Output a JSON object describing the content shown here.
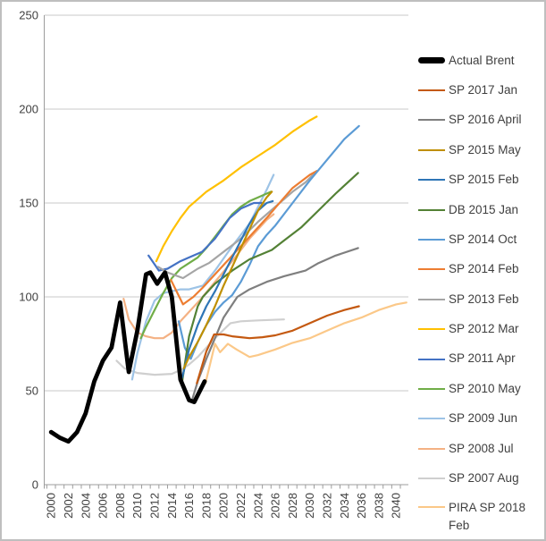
{
  "chart_data": {
    "type": "line",
    "title": "",
    "xlabel": "",
    "ylabel": "",
    "grid": true,
    "legend_position": "right",
    "x_axis": {
      "labels": [
        "2000",
        "2002",
        "2004",
        "2006",
        "2008",
        "2010",
        "2012",
        "2014",
        "2016",
        "2018",
        "2020",
        "2022",
        "2024",
        "2026",
        "2028",
        "2030",
        "2032",
        "2034",
        "2036",
        "2038",
        "2040"
      ],
      "min": 2000,
      "max": 2041.5,
      "label_step": 2,
      "minor_tick_step": 1
    },
    "y_axis": {
      "ticks": [
        0,
        50,
        100,
        150,
        200,
        250
      ],
      "min": 0,
      "max": 250
    },
    "series": [
      {
        "id": "sp-2007-aug",
        "name": "SP 2007 Aug",
        "color": "#CFCFCF",
        "width": 2.2,
        "points": [
          [
            2007.6,
            66
          ],
          [
            2008.5,
            62
          ],
          [
            2010,
            59.5
          ],
          [
            2012,
            58.5
          ],
          [
            2014,
            59
          ],
          [
            2015,
            61
          ],
          [
            2016,
            64
          ],
          [
            2017,
            68
          ],
          [
            2018,
            73
          ],
          [
            2019,
            78
          ],
          [
            2020.8,
            86
          ],
          [
            2022,
            87
          ],
          [
            2024,
            87.5
          ],
          [
            2027,
            88
          ]
        ]
      },
      {
        "id": "sp-2008-jul",
        "name": "SP 2008 Jul",
        "color": "#F4B183",
        "width": 2.2,
        "points": [
          [
            2008.4,
            99
          ],
          [
            2009,
            88
          ],
          [
            2010,
            81
          ],
          [
            2011,
            79
          ],
          [
            2012,
            78
          ],
          [
            2013,
            78
          ],
          [
            2014,
            81
          ],
          [
            2015,
            87
          ],
          [
            2016,
            92
          ],
          [
            2017.4,
            99
          ],
          [
            2019,
            108
          ],
          [
            2021,
            119
          ],
          [
            2023,
            131
          ],
          [
            2025,
            141
          ],
          [
            2025.8,
            144
          ]
        ]
      },
      {
        "id": "sp-2009-jun",
        "name": "SP 2009 Jun",
        "color": "#9DC3E6",
        "width": 2.2,
        "points": [
          [
            2009.4,
            56
          ],
          [
            2010,
            70
          ],
          [
            2011,
            87
          ],
          [
            2012,
            98
          ],
          [
            2013,
            102
          ],
          [
            2014,
            103
          ],
          [
            2015,
            104
          ],
          [
            2016,
            104
          ],
          [
            2017.6,
            106
          ],
          [
            2019,
            114
          ],
          [
            2021,
            127
          ],
          [
            2023,
            139
          ],
          [
            2024,
            148
          ],
          [
            2025,
            157
          ],
          [
            2025.8,
            165
          ]
        ]
      },
      {
        "id": "sp-2010-may",
        "name": "SP 2010 May",
        "color": "#70AD47",
        "width": 2.2,
        "points": [
          [
            2010.4,
            78
          ],
          [
            2011,
            84
          ],
          [
            2012,
            93
          ],
          [
            2013,
            102
          ],
          [
            2014,
            110
          ],
          [
            2015,
            115
          ],
          [
            2016,
            118
          ],
          [
            2017,
            121
          ],
          [
            2018,
            126
          ],
          [
            2019,
            132
          ],
          [
            2020,
            138
          ],
          [
            2021,
            144
          ],
          [
            2022,
            148
          ],
          [
            2023,
            151
          ],
          [
            2024,
            153
          ],
          [
            2025.5,
            156
          ]
        ]
      },
      {
        "id": "sp-2011-apr",
        "name": "SP 2011 Apr",
        "color": "#4472C4",
        "width": 2.2,
        "points": [
          [
            2011.3,
            122
          ],
          [
            2012.5,
            114
          ],
          [
            2013.5,
            115
          ],
          [
            2015,
            119
          ],
          [
            2016,
            121
          ],
          [
            2017.5,
            124
          ],
          [
            2019,
            131
          ],
          [
            2020.7,
            142
          ],
          [
            2022,
            147
          ],
          [
            2023.5,
            150
          ],
          [
            2024.6,
            150
          ]
        ]
      },
      {
        "id": "sp-2012-mar",
        "name": "SP 2012 Mar",
        "color": "#FFC000",
        "width": 2.2,
        "points": [
          [
            2012.2,
            119
          ],
          [
            2013,
            127
          ],
          [
            2014,
            135
          ],
          [
            2015,
            142
          ],
          [
            2016,
            148
          ],
          [
            2017,
            152
          ],
          [
            2018,
            156
          ],
          [
            2020,
            162
          ],
          [
            2022,
            169
          ],
          [
            2024,
            175
          ],
          [
            2026,
            181
          ],
          [
            2028,
            188
          ],
          [
            2030,
            194
          ],
          [
            2030.8,
            196
          ]
        ]
      },
      {
        "id": "sp-2013-feb",
        "name": "SP 2013 Feb",
        "color": "#A5A5A5",
        "width": 2.2,
        "points": [
          [
            2012.4,
            116
          ],
          [
            2013.5,
            113
          ],
          [
            2015.3,
            110
          ],
          [
            2017,
            115
          ],
          [
            2018.3,
            118
          ],
          [
            2020,
            124
          ],
          [
            2022,
            131
          ],
          [
            2024,
            140
          ],
          [
            2026,
            148
          ],
          [
            2028,
            156
          ],
          [
            2029.5,
            161
          ],
          [
            2030.8,
            167
          ]
        ]
      },
      {
        "id": "sp-2014-feb",
        "name": "SP 2014 Feb",
        "color": "#ED7D31",
        "width": 2.2,
        "points": [
          [
            2013.9,
            109
          ],
          [
            2015.3,
            96
          ],
          [
            2016.5,
            100
          ],
          [
            2017.6,
            105
          ],
          [
            2019,
            112
          ],
          [
            2021,
            122
          ],
          [
            2023,
            132
          ],
          [
            2025,
            142
          ],
          [
            2026.1,
            148
          ],
          [
            2028,
            158
          ],
          [
            2030,
            165
          ],
          [
            2030.8,
            167
          ]
        ]
      },
      {
        "id": "sp-2014-oct",
        "name": "SP 2014 Oct",
        "color": "#5B9BD5",
        "width": 2.2,
        "points": [
          [
            2014.8,
            87
          ],
          [
            2015.5,
            73
          ],
          [
            2016.2,
            67
          ],
          [
            2017,
            76
          ],
          [
            2018,
            85
          ],
          [
            2019,
            92
          ],
          [
            2020,
            97
          ],
          [
            2021,
            101
          ],
          [
            2022,
            108
          ],
          [
            2023,
            117
          ],
          [
            2024,
            127
          ],
          [
            2025,
            133
          ],
          [
            2026,
            138
          ],
          [
            2028,
            150
          ],
          [
            2030,
            162
          ],
          [
            2032,
            173
          ],
          [
            2034,
            184
          ],
          [
            2035.7,
            191
          ]
        ]
      },
      {
        "id": "db-2015-jan",
        "name": "DB 2015 Jan",
        "color": "#538135",
        "width": 2.2,
        "points": [
          [
            2015.2,
            55
          ],
          [
            2016,
            79
          ],
          [
            2017,
            95
          ],
          [
            2017.6,
            100
          ],
          [
            2019,
            107
          ],
          [
            2021,
            114
          ],
          [
            2023,
            120
          ],
          [
            2025.6,
            125
          ],
          [
            2027,
            130
          ],
          [
            2029,
            137
          ],
          [
            2031,
            146
          ],
          [
            2033,
            155
          ],
          [
            2035.6,
            166
          ]
        ]
      },
      {
        "id": "sp-2015-feb",
        "name": "SP 2015 Feb",
        "color": "#2E75B6",
        "width": 2.2,
        "points": [
          [
            2015.2,
            57
          ],
          [
            2016,
            72
          ],
          [
            2017,
            85
          ],
          [
            2018,
            95
          ],
          [
            2019,
            103
          ],
          [
            2020,
            112
          ],
          [
            2021,
            121
          ],
          [
            2022,
            130
          ],
          [
            2023,
            139
          ],
          [
            2024,
            146
          ],
          [
            2025,
            150
          ],
          [
            2025.7,
            151
          ]
        ]
      },
      {
        "id": "sp-2015-may",
        "name": "SP 2015 May",
        "color": "#BF8F00",
        "width": 2.2,
        "points": [
          [
            2015.4,
            62
          ],
          [
            2016,
            68
          ],
          [
            2017,
            76
          ],
          [
            2018,
            85
          ],
          [
            2019,
            95
          ],
          [
            2020,
            106
          ],
          [
            2021,
            116
          ],
          [
            2022,
            126
          ],
          [
            2023,
            136
          ],
          [
            2024,
            146
          ],
          [
            2025,
            153
          ],
          [
            2025.6,
            156
          ]
        ]
      },
      {
        "id": "sp-2016-april",
        "name": "SP 2016 April",
        "color": "#7F7F7F",
        "width": 2.2,
        "points": [
          [
            2016.4,
            46
          ],
          [
            2017,
            55
          ],
          [
            2018,
            67
          ],
          [
            2019,
            78
          ],
          [
            2020,
            89
          ],
          [
            2021.6,
            100
          ],
          [
            2023,
            104
          ],
          [
            2025,
            108
          ],
          [
            2027,
            111
          ],
          [
            2029.5,
            114
          ],
          [
            2031,
            118
          ],
          [
            2033,
            122
          ],
          [
            2035.6,
            126
          ]
        ]
      },
      {
        "id": "sp-2017-jan",
        "name": "SP 2017 Jan",
        "color": "#C45911",
        "width": 2.2,
        "points": [
          [
            2016.9,
            54
          ],
          [
            2018,
            71
          ],
          [
            2018.9,
            80
          ],
          [
            2020,
            80
          ],
          [
            2021,
            79
          ],
          [
            2022,
            78.5
          ],
          [
            2023,
            78
          ],
          [
            2024.5,
            78.5
          ],
          [
            2026,
            79.5
          ],
          [
            2028,
            82
          ],
          [
            2030,
            86
          ],
          [
            2032,
            90
          ],
          [
            2034,
            93
          ],
          [
            2035.7,
            95
          ]
        ]
      },
      {
        "id": "pira-sp-2018-feb",
        "name": "PIRA SP 2018 Feb",
        "color": "#FBC888",
        "width": 2.2,
        "points": [
          [
            2017.9,
            54
          ],
          [
            2019,
            75
          ],
          [
            2019.6,
            70.5
          ],
          [
            2020.5,
            75
          ],
          [
            2021.5,
            72
          ],
          [
            2023,
            68
          ],
          [
            2024,
            69
          ],
          [
            2026,
            72
          ],
          [
            2028,
            75.5
          ],
          [
            2030,
            78
          ],
          [
            2032,
            82
          ],
          [
            2034,
            86
          ],
          [
            2036,
            89
          ],
          [
            2038,
            93
          ],
          [
            2040,
            96
          ],
          [
            2041.2,
            97
          ]
        ]
      },
      {
        "id": "actual-brent",
        "name": "Actual Brent",
        "color": "#000000",
        "width": 4.8,
        "points": [
          [
            2000,
            28
          ],
          [
            2001,
            25
          ],
          [
            2002,
            23
          ],
          [
            2003,
            28
          ],
          [
            2004,
            38
          ],
          [
            2005,
            55
          ],
          [
            2006,
            66
          ],
          [
            2007,
            73
          ],
          [
            2008,
            97
          ],
          [
            2009,
            60
          ],
          [
            2010,
            82
          ],
          [
            2011,
            112
          ],
          [
            2011.5,
            113
          ],
          [
            2012.3,
            107
          ],
          [
            2013.2,
            113
          ],
          [
            2014,
            100
          ],
          [
            2015,
            56
          ],
          [
            2016,
            45
          ],
          [
            2016.6,
            44
          ],
          [
            2017.8,
            55
          ]
        ]
      }
    ],
    "legend_order": [
      "actual-brent",
      "sp-2017-jan",
      "sp-2016-april",
      "sp-2015-may",
      "sp-2015-feb",
      "db-2015-jan",
      "sp-2014-oct",
      "sp-2014-feb",
      "sp-2013-feb",
      "sp-2012-mar",
      "sp-2011-apr",
      "sp-2010-may",
      "sp-2009-jun",
      "sp-2008-jul",
      "sp-2007-aug",
      "pira-sp-2018-feb"
    ]
  },
  "style_colors": {
    "gridline": "#C9C9C9",
    "axis_line": "#9C9C9C",
    "axis_text": "#404040",
    "frame_border": "#BFBFBF",
    "background": "#FFFFFF"
  }
}
